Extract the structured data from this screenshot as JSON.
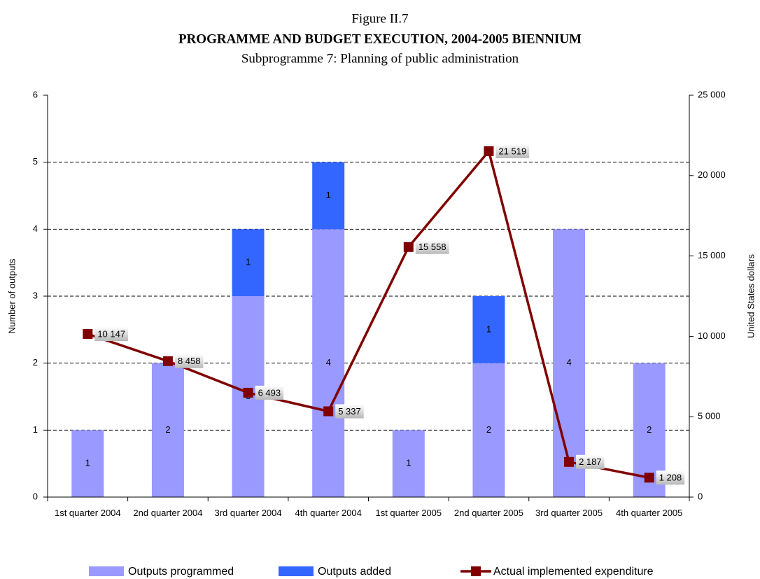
{
  "chart_data": {
    "type": "bar",
    "figure_label": "Figure II.7",
    "title": "PROGRAMME AND BUDGET EXECUTION, 2004-2005 BIENNIUM",
    "subtitle": "Subprogramme 7: Planning of public administration",
    "ylabel": "Number of outputs",
    "y2label": "United States dollars",
    "categories": [
      "1st quarter 2004",
      "2nd quarter 2004",
      "3rd quarter 2004",
      "4th quarter 2004",
      "1st quarter 2005",
      "2nd quarter 2005",
      "3rd quarter 2005",
      "4th quarter 2005"
    ],
    "series": [
      {
        "name": "Outputs programmed",
        "color": "#9999ff",
        "type": "bar",
        "values": [
          1,
          2,
          3,
          4,
          1,
          2,
          4,
          2
        ]
      },
      {
        "name": "Outputs added",
        "color": "#3366ff",
        "type": "bar",
        "values": [
          0,
          0,
          1,
          1,
          0,
          1,
          0,
          0
        ]
      },
      {
        "name": "Actual implemented expenditure",
        "color": "#800000",
        "type": "line",
        "axis": "y2",
        "values": [
          10147,
          8458,
          6493,
          5337,
          15558,
          21519,
          2187,
          1208
        ],
        "value_labels": [
          "10 147",
          "8 458",
          "6 493",
          "5 337",
          "15 558",
          "21 519",
          "2 187",
          "1 208"
        ]
      }
    ],
    "stacked": true,
    "ylim": [
      0,
      6
    ],
    "yticks": [
      0,
      1,
      2,
      3,
      4,
      5,
      6
    ],
    "y2lim": [
      0,
      25000
    ],
    "y2ticks": [
      0,
      {
        "value": 5000,
        "label": "5 000"
      },
      {
        "value": 10000,
        "label": "10 000"
      },
      {
        "value": 15000,
        "label": "15 000"
      },
      {
        "value": 20000,
        "label": "20 000"
      },
      {
        "value": 25000,
        "label": "25 000"
      }
    ],
    "grid": true,
    "legend": "bottom"
  }
}
